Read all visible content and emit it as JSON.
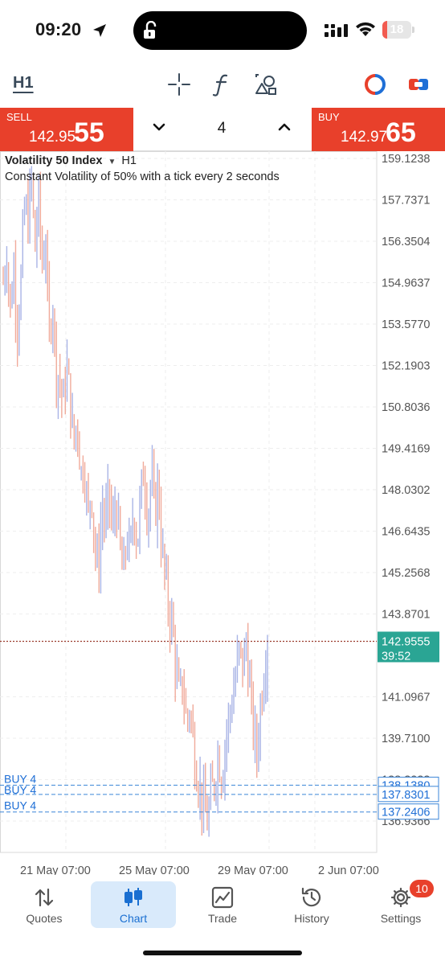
{
  "status": {
    "time": "09:20",
    "battery": "18",
    "battery_level": 0.18,
    "icons": [
      "location-arrow-icon",
      "lock-open-icon",
      "cellular-signal-icon",
      "wifi-icon",
      "battery-icon"
    ]
  },
  "toolbar": {
    "timeframe": "H1",
    "icons": [
      "crosshair-icon",
      "indicator-f-icon",
      "objects-icon",
      "one-click-trading-icon",
      "chart-toggle-icon"
    ]
  },
  "trade": {
    "sell_label": "SELL",
    "sell_price_small": "142.95",
    "sell_price_big": "55",
    "buy_label": "BUY",
    "buy_price_small": "142.97",
    "buy_price_big": "65",
    "lot": "4"
  },
  "chart": {
    "symbol": "Volatility 50 Index",
    "timeframe": "H1",
    "description": "Constant Volatility of 50% with a tick every 2 seconds",
    "current_price": "142.9555",
    "countdown": "39:52"
  },
  "chart_data": {
    "type": "candlestick",
    "price_ticks": [
      "159.1238",
      "157.7371",
      "156.3504",
      "154.9637",
      "153.5770",
      "152.1903",
      "150.8036",
      "149.4169",
      "148.0302",
      "146.6435",
      "145.2568",
      "143.8701",
      "141.0967",
      "139.7100",
      "138.3233",
      "136.9366"
    ],
    "price_tick_values": [
      159.1238,
      157.7371,
      156.3504,
      154.9637,
      153.577,
      152.1903,
      150.8036,
      149.4169,
      148.0302,
      146.6435,
      145.2568,
      143.8701,
      141.0967,
      139.71,
      138.3233,
      136.9366
    ],
    "price_range": [
      136.4,
      159.3
    ],
    "time_ticks": [
      "21 May 07:00",
      "25 May 07:00",
      "29 May 07:00",
      "2 Jun 07:00"
    ],
    "current_price": 142.9555,
    "bull_color": "#a9b4e6",
    "bear_color": "#f0aa9a",
    "close_path": [
      155.0,
      156.0,
      154.0,
      155.5,
      153.5,
      155.0,
      157.5,
      157.0,
      158.5,
      156.0,
      157.8,
      155.5,
      156.5,
      153.0,
      154.5,
      152.0,
      151.8,
      150.8,
      152.2,
      151.0,
      149.5,
      150.5,
      148.5,
      149.0,
      147.0,
      148.2,
      146.0,
      145.3,
      147.5,
      146.8,
      148.0,
      146.5,
      147.8,
      146.2,
      145.0,
      146.5,
      145.8,
      147.5,
      146.2,
      147.8,
      148.8,
      147.0,
      148.5,
      147.2,
      148.3,
      146.0,
      145.0,
      144.0,
      143.5,
      142.0,
      141.0,
      141.6,
      140.2,
      140.8,
      139.4,
      138.6,
      137.9,
      137.3,
      136.9,
      137.8,
      138.3,
      139.2,
      138.4,
      139.6,
      140.4,
      141.0,
      141.8,
      142.6,
      142.1,
      142.9,
      141.3,
      140.0,
      139.2,
      140.8,
      142.0,
      142.9555
    ],
    "orders": [
      {
        "label": "BUY 4",
        "price": 138.138,
        "price_text": "138.1380"
      },
      {
        "label": "BUY 4",
        "price": 137.8301,
        "price_text": "137.8301"
      },
      {
        "label": "BUY 4",
        "price": 137.2406,
        "price_text": "137.2406"
      }
    ]
  },
  "tabs": [
    {
      "label": "Quotes",
      "icon": "quotes-arrows-icon",
      "active": false
    },
    {
      "label": "Chart",
      "icon": "candlestick-icon",
      "active": true
    },
    {
      "label": "Trade",
      "icon": "trade-chart-icon",
      "active": false
    },
    {
      "label": "History",
      "icon": "history-clock-icon",
      "active": false
    },
    {
      "label": "Settings",
      "icon": "settings-gear-icon",
      "active": false,
      "badge": "10"
    }
  ]
}
